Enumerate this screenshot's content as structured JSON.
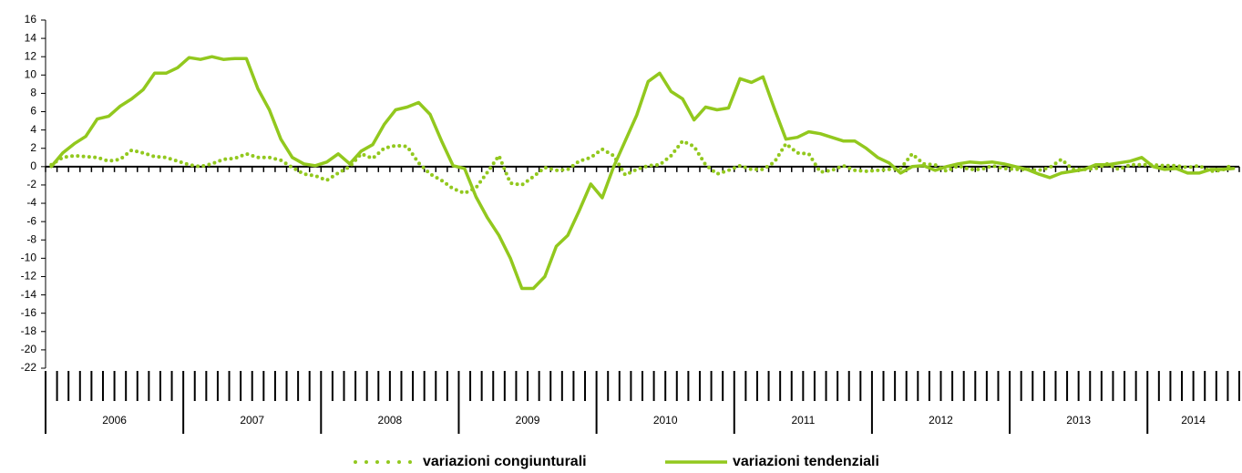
{
  "chart_data": {
    "type": "line",
    "categories": [
      null,
      null,
      null,
      null,
      null,
      null,
      null,
      null,
      null,
      null,
      null,
      null,
      null,
      null,
      null,
      null,
      null,
      null,
      null,
      null,
      null,
      null,
      null,
      null,
      null,
      null,
      null,
      null,
      null,
      null,
      null,
      null,
      null,
      null,
      null,
      null,
      null,
      null,
      null,
      null,
      null,
      null,
      null,
      null,
      null,
      null,
      null,
      null,
      null,
      null,
      null,
      null,
      null,
      null,
      null,
      null,
      null,
      null,
      null,
      null,
      null,
      null,
      null,
      null,
      null,
      null,
      null,
      null,
      null,
      null,
      null,
      null,
      null,
      null,
      null,
      null,
      null,
      null,
      null,
      null,
      null,
      null,
      null,
      null,
      null,
      null,
      null,
      null,
      null,
      null,
      null,
      null,
      null,
      null,
      null,
      null,
      null,
      null,
      null,
      null,
      null,
      null,
      null,
      null
    ],
    "year_labels": [
      "2006",
      "2007",
      "2008",
      "2009",
      "2010",
      "2011",
      "2012",
      "2013",
      "2014"
    ],
    "series": [
      {
        "name": "variazioni congiunturali",
        "color": "#92c81e",
        "style": "dotted",
        "values": [
          0.2,
          1.0,
          1.2,
          1.1,
          1.0,
          0.6,
          0.8,
          1.8,
          1.5,
          1.1,
          1.0,
          0.6,
          0.2,
          0.0,
          0.3,
          0.8,
          0.9,
          1.4,
          1.0,
          1.0,
          0.7,
          -0.1,
          -0.8,
          -1.0,
          -1.5,
          -0.7,
          0.0,
          1.4,
          0.9,
          2.0,
          2.3,
          2.2,
          0.4,
          -0.8,
          -1.5,
          -2.4,
          -2.9,
          -2.3,
          -0.6,
          1.2,
          -1.8,
          -2.0,
          -1.1,
          -0.1,
          -0.4,
          -0.3,
          0.6,
          1.0,
          1.9,
          1.2,
          -0.9,
          -0.3,
          0.1,
          0.2,
          1.2,
          2.8,
          2.2,
          0.2,
          -0.8,
          -0.4,
          0.1,
          -0.3,
          -0.3,
          0.5,
          2.5,
          1.5,
          1.4,
          -0.6,
          -0.4,
          0.1,
          -0.4,
          -0.5,
          -0.4,
          -0.3,
          -0.2,
          1.4,
          0.3,
          0.2,
          -0.5,
          0.1,
          -0.3,
          -0.3,
          0.1,
          -0.2,
          -0.3,
          -0.3,
          -0.4,
          -0.1,
          0.8,
          -0.3,
          -0.3,
          -0.2,
          0.3,
          -0.3,
          0.2,
          0.2,
          0.2,
          0.1,
          0.1,
          -0.1,
          0.1,
          -0.5,
          -0.4,
          0.3
        ]
      },
      {
        "name": "variazioni tendenziali",
        "color": "#92c81e",
        "style": "solid",
        "values": [
          0,
          1.5,
          2.5,
          3.3,
          5.2,
          5.5,
          6.6,
          7.4,
          8.4,
          10.2,
          10.2,
          10.8,
          11.9,
          11.7,
          12.0,
          11.7,
          11.8,
          11.8,
          8.5,
          6.2,
          3.0,
          1.0,
          0.3,
          0.1,
          0.5,
          1.4,
          0.3,
          1.7,
          2.4,
          4.6,
          6.2,
          6.5,
          7.0,
          5.7,
          2.8,
          0.1,
          -0.2,
          -3.3,
          -5.6,
          -7.5,
          -10.0,
          -13.3,
          -13.3,
          -12.0,
          -8.7,
          -7.5,
          -4.8,
          -1.9,
          -3.4,
          0,
          2.8,
          5.6,
          9.3,
          10.2,
          8.2,
          7.4,
          5.1,
          6.5,
          6.2,
          6.4,
          9.6,
          9.2,
          9.8,
          6.3,
          3.0,
          3.2,
          3.8,
          3.6,
          3.2,
          2.8,
          2.8,
          2.0,
          1.0,
          0.4,
          -0.7,
          0,
          0.1,
          -0.4,
          0,
          0.3,
          0.5,
          0.4,
          0.5,
          0.3,
          0,
          -0.3,
          -0.8,
          -1.2,
          -0.7,
          -0.5,
          -0.3,
          0.2,
          0.2,
          0.4,
          0.6,
          1.0,
          0,
          -0.3,
          -0.2,
          -0.7,
          -0.7,
          -0.3,
          -0.3,
          -0.2
        ]
      }
    ],
    "ylim": [
      -22,
      16
    ],
    "yticks": [
      16,
      14,
      12,
      10,
      8,
      6,
      4,
      2,
      0,
      -2,
      -4,
      -6,
      -8,
      -10,
      -12,
      -14,
      -16,
      -18,
      -20,
      -22
    ],
    "legend": "bottom"
  }
}
